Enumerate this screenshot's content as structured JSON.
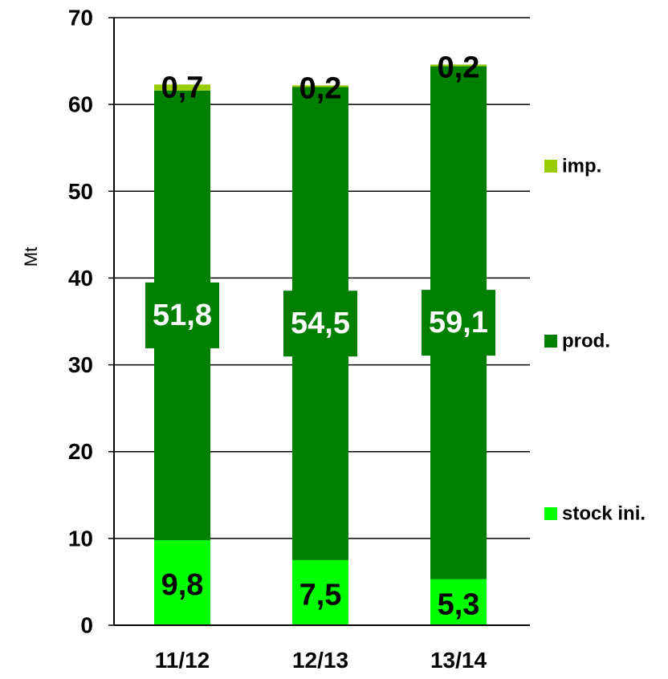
{
  "chart_data": {
    "type": "bar",
    "stacked": true,
    "ylabel": "Mt",
    "ylim": [
      0,
      70
    ],
    "yticks": [
      "0",
      "10",
      "20",
      "30",
      "40",
      "50",
      "60",
      "70"
    ],
    "grid": true,
    "legend_position": "right",
    "categories": [
      "11/12",
      "12/13",
      "13/14"
    ],
    "series": [
      {
        "name": "stock ini.",
        "color": "#00ff00",
        "values": [
          9.8,
          7.5,
          5.3
        ],
        "labels": [
          "9,8",
          "7,5",
          "5,3"
        ],
        "label_color": "#000000"
      },
      {
        "name": "prod.",
        "color": "#007f00",
        "values": [
          51.8,
          54.5,
          59.1
        ],
        "labels": [
          "51,8",
          "54,5",
          "59,1"
        ],
        "label_color": "#ffffff"
      },
      {
        "name": "imp.",
        "color": "#99cc00",
        "values": [
          0.7,
          0.2,
          0.2
        ],
        "labels": [
          "0,7",
          "0,2",
          "0,2"
        ],
        "label_color": "#000000"
      }
    ],
    "legend_order": [
      2,
      1,
      0
    ]
  }
}
